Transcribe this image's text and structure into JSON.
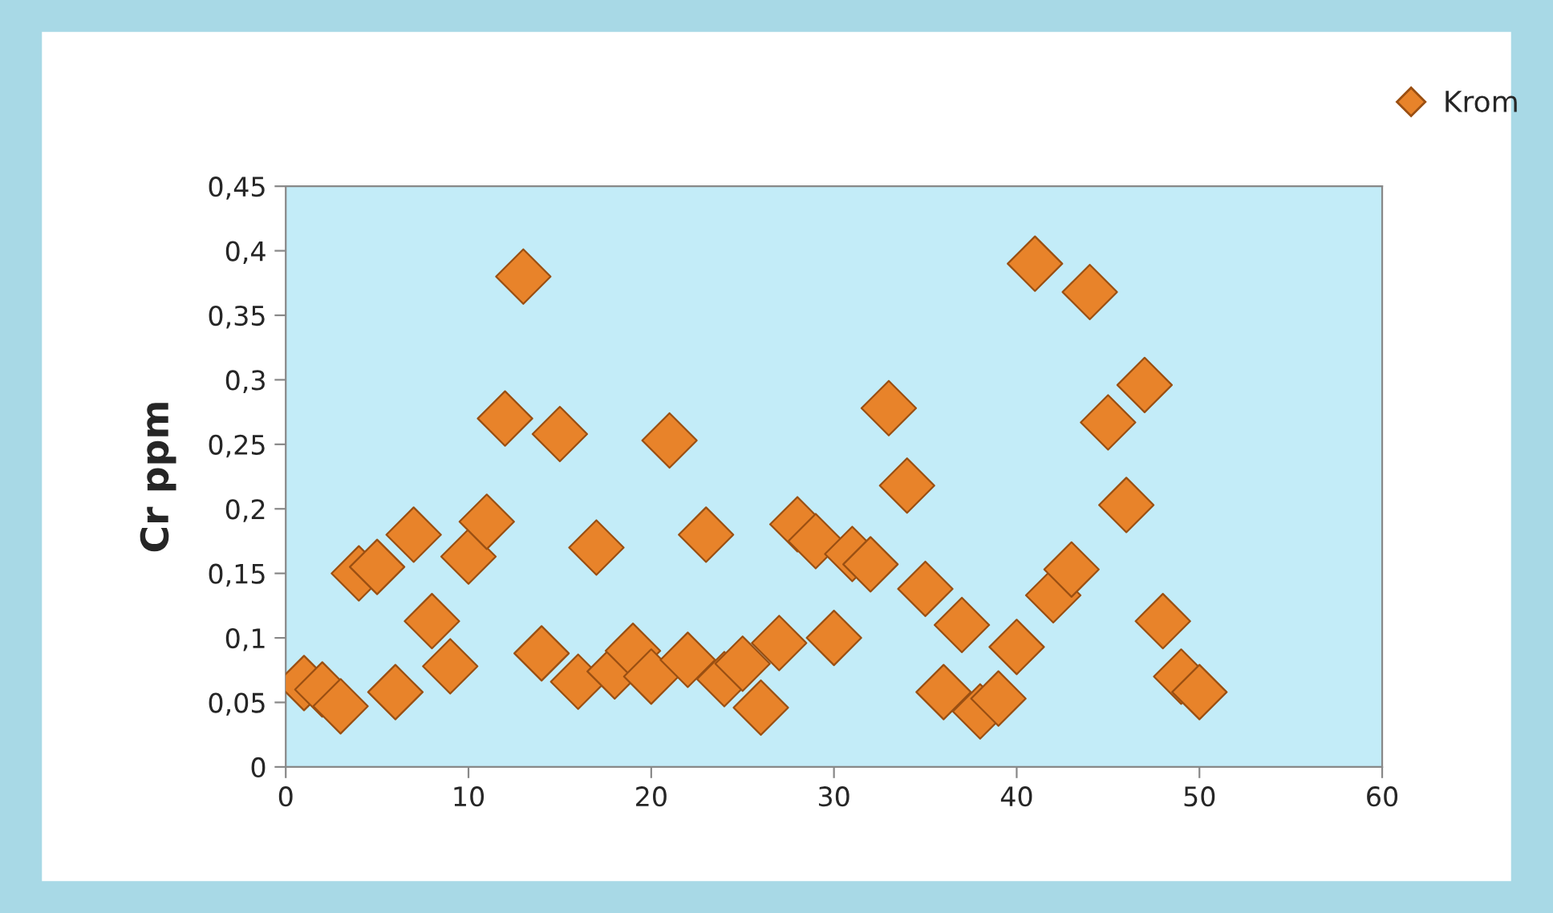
{
  "chart_data": {
    "type": "scatter",
    "ylabel": "Cr ppm",
    "x": [
      1,
      2,
      3,
      4,
      5,
      6,
      7,
      8,
      9,
      10,
      11,
      12,
      13,
      14,
      15,
      16,
      17,
      18,
      19,
      20,
      21,
      22,
      23,
      24,
      25,
      26,
      27,
      28,
      29,
      30,
      31,
      32,
      33,
      34,
      35,
      36,
      37,
      38,
      39,
      40,
      41,
      42,
      43,
      44,
      45,
      46,
      47,
      48,
      49,
      50
    ],
    "series": [
      {
        "name": "Krom",
        "color": "#e8832a",
        "values": [
          0.065,
          0.06,
          0.047,
          0.15,
          0.155,
          0.058,
          0.18,
          0.113,
          0.078,
          0.163,
          0.19,
          0.27,
          0.38,
          0.088,
          0.258,
          0.066,
          0.17,
          0.074,
          0.09,
          0.07,
          0.253,
          0.083,
          0.18,
          0.068,
          0.08,
          0.046,
          0.096,
          0.188,
          0.175,
          0.1,
          0.165,
          0.157,
          0.278,
          0.218,
          0.138,
          0.058,
          0.11,
          0.043,
          0.053,
          0.093,
          0.39,
          0.133,
          0.153,
          0.368,
          0.267,
          0.203,
          0.296,
          0.113,
          0.07,
          0.058
        ]
      }
    ],
    "xlim": [
      0,
      60
    ],
    "xticks": [
      0,
      10,
      20,
      30,
      40,
      50,
      60
    ],
    "ylim": [
      0,
      0.45
    ],
    "yticks": [
      {
        "value": 0,
        "label": "0"
      },
      {
        "value": 0.05,
        "label": "0,05"
      },
      {
        "value": 0.1,
        "label": "0,1"
      },
      {
        "value": 0.15,
        "label": "0,15"
      },
      {
        "value": 0.2,
        "label": "0,2"
      },
      {
        "value": 0.25,
        "label": "0,25"
      },
      {
        "value": 0.3,
        "label": "0,3"
      },
      {
        "value": 0.35,
        "label": "0,35"
      },
      {
        "value": 0.4,
        "label": "0,4"
      },
      {
        "value": 0.45,
        "label": "0,45"
      }
    ],
    "marker": "diamond",
    "grid": false,
    "legend": "top right"
  }
}
